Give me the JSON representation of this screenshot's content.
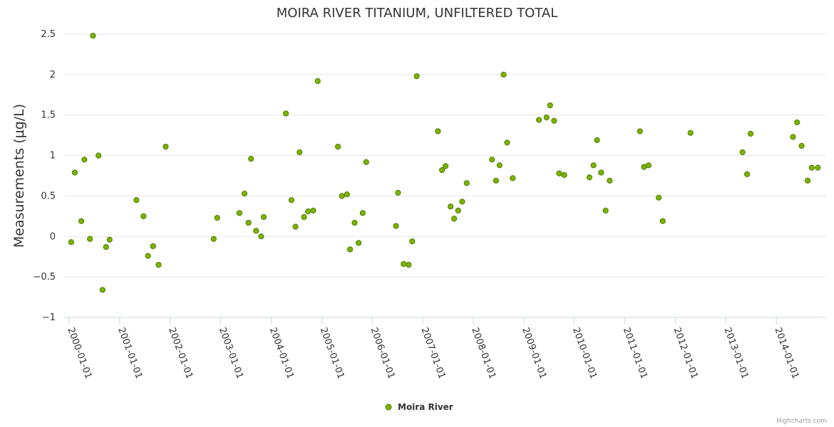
{
  "chart_data": {
    "type": "scatter",
    "title": "MOIRA RIVER TITANIUM, UNFILTERED TOTAL",
    "ylabel": "Measurements (μg/L)",
    "xlabel": "",
    "ylim": [
      -1,
      2.5
    ],
    "yticks": [
      -1,
      -0.5,
      0,
      0.5,
      1,
      1.5,
      2,
      2.5
    ],
    "ytick_labels": [
      "−1",
      "−0.5",
      "0",
      "0.5",
      "1",
      "1.5",
      "2",
      "2.5"
    ],
    "x_range_years": [
      1999.9,
      2015.0
    ],
    "xticks": [
      {
        "year": 2000,
        "label": "2000-01-01"
      },
      {
        "year": 2001,
        "label": "2001-01-01"
      },
      {
        "year": 2002,
        "label": "2002-01-01"
      },
      {
        "year": 2003,
        "label": "2003-01-01"
      },
      {
        "year": 2004,
        "label": "2004-01-01"
      },
      {
        "year": 2005,
        "label": "2005-01-01"
      },
      {
        "year": 2006,
        "label": "2006-01-01"
      },
      {
        "year": 2007,
        "label": "2007-01-01"
      },
      {
        "year": 2008,
        "label": "2008-01-01"
      },
      {
        "year": 2009,
        "label": "2009-01-01"
      },
      {
        "year": 2010,
        "label": "2010-01-01"
      },
      {
        "year": 2011,
        "label": "2011-01-01"
      },
      {
        "year": 2012,
        "label": "2012-01-01"
      },
      {
        "year": 2013,
        "label": "2013-01-01"
      },
      {
        "year": 2014,
        "label": "2014-01-01"
      }
    ],
    "series": [
      {
        "name": "Moira River",
        "color": "#7cb404",
        "stroke": "#4f7a00",
        "points": [
          [
            2000.04,
            -0.07
          ],
          [
            2000.11,
            0.79
          ],
          [
            2000.24,
            0.19
          ],
          [
            2000.3,
            0.95
          ],
          [
            2000.41,
            -0.03
          ],
          [
            2000.47,
            2.48
          ],
          [
            2000.58,
            1.0
          ],
          [
            2000.66,
            -0.66
          ],
          [
            2000.73,
            -0.13
          ],
          [
            2000.8,
            -0.04
          ],
          [
            2001.33,
            0.45
          ],
          [
            2001.47,
            0.25
          ],
          [
            2001.56,
            -0.24
          ],
          [
            2001.66,
            -0.12
          ],
          [
            2001.77,
            -0.35
          ],
          [
            2001.91,
            1.11
          ],
          [
            2002.86,
            -0.03
          ],
          [
            2002.93,
            0.23
          ],
          [
            2003.37,
            0.29
          ],
          [
            2003.47,
            0.53
          ],
          [
            2003.55,
            0.17
          ],
          [
            2003.6,
            0.96
          ],
          [
            2003.7,
            0.07
          ],
          [
            2003.8,
            0.0
          ],
          [
            2003.85,
            0.24
          ],
          [
            2004.29,
            1.52
          ],
          [
            2004.4,
            0.45
          ],
          [
            2004.48,
            0.12
          ],
          [
            2004.56,
            1.04
          ],
          [
            2004.65,
            0.24
          ],
          [
            2004.73,
            0.31
          ],
          [
            2004.83,
            0.32
          ],
          [
            2004.92,
            1.92
          ],
          [
            2005.32,
            1.11
          ],
          [
            2005.4,
            0.5
          ],
          [
            2005.5,
            0.52
          ],
          [
            2005.56,
            -0.16
          ],
          [
            2005.65,
            0.17
          ],
          [
            2005.73,
            -0.08
          ],
          [
            2005.81,
            0.29
          ],
          [
            2005.88,
            0.92
          ],
          [
            2006.47,
            0.13
          ],
          [
            2006.51,
            0.54
          ],
          [
            2006.62,
            -0.34
          ],
          [
            2006.72,
            -0.35
          ],
          [
            2006.79,
            -0.06
          ],
          [
            2006.88,
            1.98
          ],
          [
            2007.3,
            1.3
          ],
          [
            2007.38,
            0.82
          ],
          [
            2007.45,
            0.87
          ],
          [
            2007.55,
            0.37
          ],
          [
            2007.62,
            0.22
          ],
          [
            2007.7,
            0.32
          ],
          [
            2007.78,
            0.43
          ],
          [
            2007.87,
            0.66
          ],
          [
            2008.37,
            0.95
          ],
          [
            2008.45,
            0.69
          ],
          [
            2008.52,
            0.88
          ],
          [
            2008.6,
            2.0
          ],
          [
            2008.67,
            1.16
          ],
          [
            2008.78,
            0.72
          ],
          [
            2009.3,
            1.44
          ],
          [
            2009.45,
            1.47
          ],
          [
            2009.52,
            1.62
          ],
          [
            2009.6,
            1.43
          ],
          [
            2009.7,
            0.78
          ],
          [
            2009.8,
            0.76
          ],
          [
            2010.3,
            0.73
          ],
          [
            2010.38,
            0.88
          ],
          [
            2010.45,
            1.19
          ],
          [
            2010.53,
            0.79
          ],
          [
            2010.62,
            0.32
          ],
          [
            2010.7,
            0.69
          ],
          [
            2011.3,
            1.3
          ],
          [
            2011.38,
            0.86
          ],
          [
            2011.47,
            0.88
          ],
          [
            2011.67,
            0.48
          ],
          [
            2011.75,
            0.19
          ],
          [
            2012.3,
            1.28
          ],
          [
            2013.33,
            1.04
          ],
          [
            2013.42,
            0.77
          ],
          [
            2013.49,
            1.27
          ],
          [
            2014.33,
            1.23
          ],
          [
            2014.41,
            1.41
          ],
          [
            2014.5,
            1.12
          ],
          [
            2014.62,
            0.69
          ],
          [
            2014.7,
            0.85
          ],
          [
            2014.82,
            0.85
          ]
        ]
      }
    ],
    "legend": {
      "position": "bottom-center",
      "label": "Moira River"
    },
    "credits": "Highcharts.com"
  }
}
